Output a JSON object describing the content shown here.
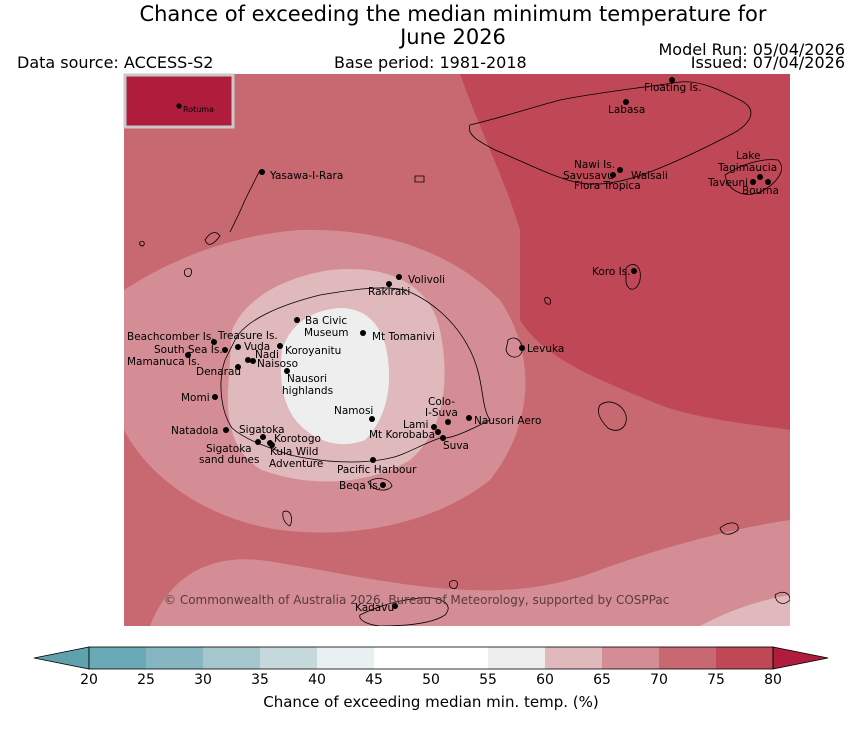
{
  "header": {
    "title_line1": "Chance of exceeding the median minimum temperature for",
    "title_line2": "June 2026",
    "data_source": "Data source: ACCESS-S2",
    "base_period": "Base period: 1981-2018",
    "model_run": "Model Run: 05/04/2026",
    "issued": "Issued: 07/04/2026"
  },
  "map": {
    "copyright": "© Commonwealth of Australia 2026, Bureau of Meteorology, supported by COSPPac",
    "inset_label": "Rotuma",
    "places": [
      "Floating Is.",
      "Labasa",
      "Yasawa-I-Rara",
      "Nawi Is.",
      "Savusavu",
      "Waisali",
      "Flora Tropica",
      "Lake",
      "Tagimaucia",
      "Taveuni",
      "Bouma",
      "Koro Is.",
      "Volivoli",
      "Rakiraki",
      "Beachcomber Is.",
      "Treasure Is.",
      "Ba Civic",
      "Museum",
      "Mt Tomanivi",
      "South Sea Is.",
      "Vuda",
      "Nadi",
      "Koroyanitu",
      "Mamanuca Is.",
      "Naisoso",
      "Denarau",
      "Nausori",
      "highlands",
      "Levuka",
      "Momi",
      "Colo-",
      "I-Suva",
      "Namosi",
      "Lami",
      "Nausori Aero",
      "Natadola",
      "Sigatoka",
      "Mt Korobaba",
      "Korotogo",
      "Suva",
      "Sigatoka",
      "sand dunes",
      "Kula Wild",
      "Adventure",
      "Pacific Harbour",
      "Beqa Is.",
      "Kadavu"
    ]
  },
  "colorbar": {
    "title": "Chance of exceeding median min. temp. (%)",
    "ticks": [
      "20",
      "25",
      "30",
      "35",
      "40",
      "45",
      "50",
      "55",
      "60",
      "65",
      "70",
      "75",
      "80"
    ],
    "colors": [
      "#6aa9b6",
      "#86b6c1",
      "#a4c6cc",
      "#c5d9dd",
      "#e8f0f1",
      "#ffffff",
      "#ffffff",
      "#eeeeee",
      "#e0b9bd",
      "#d48d94",
      "#c86870",
      "#bf4756"
    ],
    "under_color": "#5fa2ae",
    "over_color": "#b01c3c"
  }
}
